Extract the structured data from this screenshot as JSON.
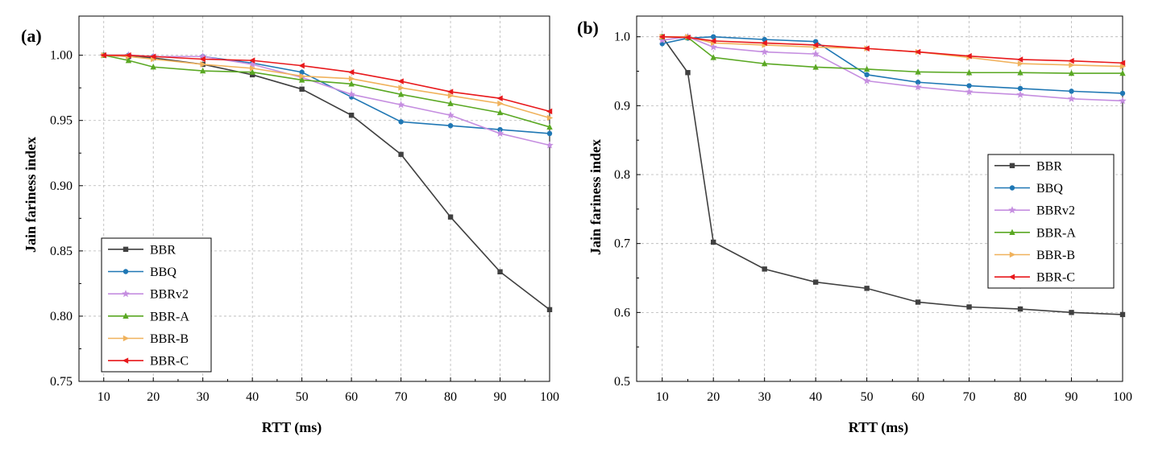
{
  "chart_data": [
    {
      "type": "line",
      "panel_label": "(a)",
      "xlabel": "RTT (ms)",
      "ylabel": "Jain fariness index",
      "xlim": [
        5,
        100
      ],
      "ylim": [
        0.75,
        1.03
      ],
      "xticks": [
        10,
        20,
        30,
        40,
        50,
        60,
        70,
        80,
        90,
        100
      ],
      "yticks": [
        0.75,
        0.8,
        0.85,
        0.9,
        0.95,
        1.0
      ],
      "ytick_labels": [
        "0.75",
        "0.80",
        "0.85",
        "0.90",
        "0.95",
        "1.00"
      ],
      "grid": true,
      "legend_position": "bottom-left",
      "x": [
        10,
        15,
        20,
        30,
        40,
        50,
        60,
        70,
        80,
        90,
        100
      ],
      "series": [
        {
          "name": "BBR",
          "color": "#404040",
          "marker": "square",
          "values": [
            1.0,
            0.999,
            0.998,
            0.993,
            0.985,
            0.974,
            0.954,
            0.924,
            0.876,
            0.834,
            0.805
          ]
        },
        {
          "name": "BBQ",
          "color": "#1f77b4",
          "marker": "circle",
          "values": [
            1.0,
            1.0,
            0.999,
            0.999,
            0.994,
            0.987,
            0.968,
            0.949,
            0.946,
            0.943,
            0.94
          ]
        },
        {
          "name": "BBRv2",
          "color": "#c58ee0",
          "marker": "star",
          "values": [
            1.0,
            1.0,
            0.999,
            0.999,
            0.993,
            0.983,
            0.97,
            0.962,
            0.954,
            0.94,
            0.931
          ]
        },
        {
          "name": "BBR-A",
          "color": "#5aa823",
          "marker": "triangle",
          "values": [
            1.0,
            0.996,
            0.991,
            0.988,
            0.987,
            0.981,
            0.978,
            0.97,
            0.963,
            0.956,
            0.945
          ]
        },
        {
          "name": "BBR-B",
          "color": "#f0b25c",
          "marker": "tri-right",
          "values": [
            1.0,
            0.999,
            0.997,
            0.993,
            0.99,
            0.984,
            0.982,
            0.975,
            0.969,
            0.963,
            0.952
          ]
        },
        {
          "name": "BBR-C",
          "color": "#e8191c",
          "marker": "tri-left",
          "values": [
            1.0,
            1.0,
            0.999,
            0.997,
            0.996,
            0.992,
            0.987,
            0.98,
            0.972,
            0.967,
            0.957
          ]
        }
      ]
    },
    {
      "type": "line",
      "panel_label": "(b)",
      "xlabel": "RTT (ms)",
      "ylabel": "Jain fariness index",
      "xlim": [
        5,
        100
      ],
      "ylim": [
        0.5,
        1.03
      ],
      "xticks": [
        10,
        20,
        30,
        40,
        50,
        60,
        70,
        80,
        90,
        100
      ],
      "yticks": [
        0.5,
        0.6,
        0.7,
        0.8,
        0.9,
        1.0
      ],
      "ytick_labels": [
        "0.5",
        "0.6",
        "0.7",
        "0.8",
        "0.9",
        "1.0"
      ],
      "grid": true,
      "legend_position": "middle-right",
      "x": [
        10,
        15,
        20,
        30,
        40,
        50,
        60,
        70,
        80,
        90,
        100
      ],
      "series": [
        {
          "name": "BBR",
          "color": "#404040",
          "marker": "square",
          "values": [
            1.0,
            0.948,
            0.702,
            0.663,
            0.644,
            0.635,
            0.615,
            0.608,
            0.605,
            0.6,
            0.597
          ]
        },
        {
          "name": "BBQ",
          "color": "#1f77b4",
          "marker": "circle",
          "values": [
            0.99,
            0.998,
            1.0,
            0.996,
            0.993,
            0.945,
            0.934,
            0.929,
            0.925,
            0.921,
            0.918
          ]
        },
        {
          "name": "BBRv2",
          "color": "#c58ee0",
          "marker": "star",
          "values": [
            0.995,
            1.0,
            0.985,
            0.978,
            0.975,
            0.936,
            0.927,
            0.92,
            0.916,
            0.91,
            0.907
          ]
        },
        {
          "name": "BBR-A",
          "color": "#5aa823",
          "marker": "triangle",
          "values": [
            1.0,
            0.999,
            0.97,
            0.961,
            0.956,
            0.953,
            0.949,
            0.948,
            0.948,
            0.947,
            0.947
          ]
        },
        {
          "name": "BBR-B",
          "color": "#f0b25c",
          "marker": "tri-right",
          "values": [
            1.0,
            1.0,
            0.991,
            0.988,
            0.985,
            0.983,
            0.978,
            0.97,
            0.961,
            0.959,
            0.957
          ]
        },
        {
          "name": "BBR-C",
          "color": "#e8191c",
          "marker": "tri-left",
          "values": [
            1.0,
            0.999,
            0.994,
            0.991,
            0.988,
            0.983,
            0.978,
            0.972,
            0.967,
            0.965,
            0.962
          ]
        }
      ]
    }
  ]
}
